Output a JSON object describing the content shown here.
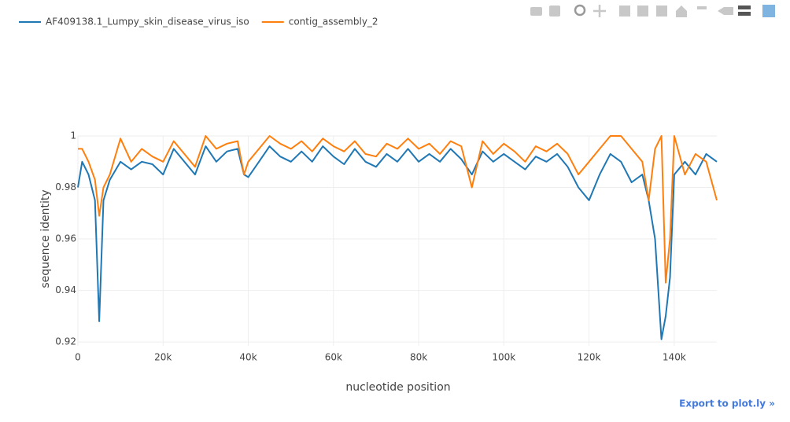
{
  "chart_data": {
    "type": "line",
    "x_label": "nucleotide position",
    "y_label": "sequence identity",
    "x": [
      0,
      1000,
      2500,
      4000,
      5000,
      6000,
      7500,
      10000,
      12500,
      15000,
      17500,
      20000,
      22500,
      25000,
      27500,
      30000,
      32500,
      35000,
      37500,
      39000,
      40000,
      42500,
      45000,
      47500,
      50000,
      52500,
      55000,
      57500,
      60000,
      62500,
      65000,
      67500,
      70000,
      72500,
      75000,
      77500,
      80000,
      82500,
      85000,
      87500,
      90000,
      92500,
      95000,
      97500,
      100000,
      102500,
      105000,
      107500,
      110000,
      112500,
      115000,
      117500,
      120000,
      122500,
      125000,
      127500,
      130000,
      132500,
      134000,
      135500,
      137000,
      138000,
      139000,
      140000,
      142500,
      145000,
      147500,
      150000
    ],
    "series": [
      {
        "name": "AF409138.1_Lumpy_skin_disease_virus_iso",
        "color": "#1f77b4",
        "values": [
          0.98,
          0.99,
          0.985,
          0.975,
          0.928,
          0.975,
          0.983,
          0.99,
          0.987,
          0.99,
          0.989,
          0.985,
          0.995,
          0.99,
          0.985,
          0.996,
          0.99,
          0.994,
          0.995,
          0.985,
          0.984,
          0.99,
          0.996,
          0.992,
          0.99,
          0.994,
          0.99,
          0.996,
          0.992,
          0.989,
          0.995,
          0.99,
          0.988,
          0.993,
          0.99,
          0.995,
          0.99,
          0.993,
          0.99,
          0.995,
          0.991,
          0.985,
          0.994,
          0.99,
          0.993,
          0.99,
          0.987,
          0.992,
          0.99,
          0.993,
          0.988,
          0.98,
          0.975,
          0.985,
          0.993,
          0.99,
          0.982,
          0.985,
          0.975,
          0.96,
          0.921,
          0.93,
          0.945,
          0.985,
          0.99,
          0.985,
          0.993,
          0.99
        ]
      },
      {
        "name": "contig_assembly_2",
        "color": "#ff7f0e",
        "values": [
          0.995,
          0.995,
          0.99,
          0.983,
          0.969,
          0.98,
          0.985,
          0.999,
          0.99,
          0.995,
          0.992,
          0.99,
          0.998,
          0.993,
          0.988,
          1.0,
          0.995,
          0.997,
          0.998,
          0.985,
          0.99,
          0.995,
          1.0,
          0.997,
          0.995,
          0.998,
          0.994,
          0.999,
          0.996,
          0.994,
          0.998,
          0.993,
          0.992,
          0.997,
          0.995,
          0.999,
          0.995,
          0.997,
          0.993,
          0.998,
          0.996,
          0.98,
          0.998,
          0.993,
          0.997,
          0.994,
          0.99,
          0.996,
          0.994,
          0.997,
          0.993,
          0.985,
          0.99,
          0.995,
          1.0,
          1.0,
          0.995,
          0.99,
          0.975,
          0.995,
          1.0,
          0.943,
          0.96,
          1.0,
          0.985,
          0.993,
          0.99,
          0.975
        ]
      }
    ],
    "xlim": [
      0,
      150000
    ],
    "ylim": [
      0.9185,
      1.0
    ],
    "xticks": [
      0,
      {
        "value": 20000,
        "label": "20k"
      },
      {
        "value": 40000,
        "label": "40k"
      },
      {
        "value": 60000,
        "label": "60k"
      },
      {
        "value": 80000,
        "label": "80k"
      },
      {
        "value": 100000,
        "label": "100k"
      },
      {
        "value": 120000,
        "label": "120k"
      },
      {
        "value": 140000,
        "label": "140k"
      }
    ],
    "yticks": [
      0.92,
      0.94,
      0.96,
      0.98,
      1
    ],
    "grid": true,
    "legend": "top-left"
  },
  "export_link": "Export to plot.ly »"
}
